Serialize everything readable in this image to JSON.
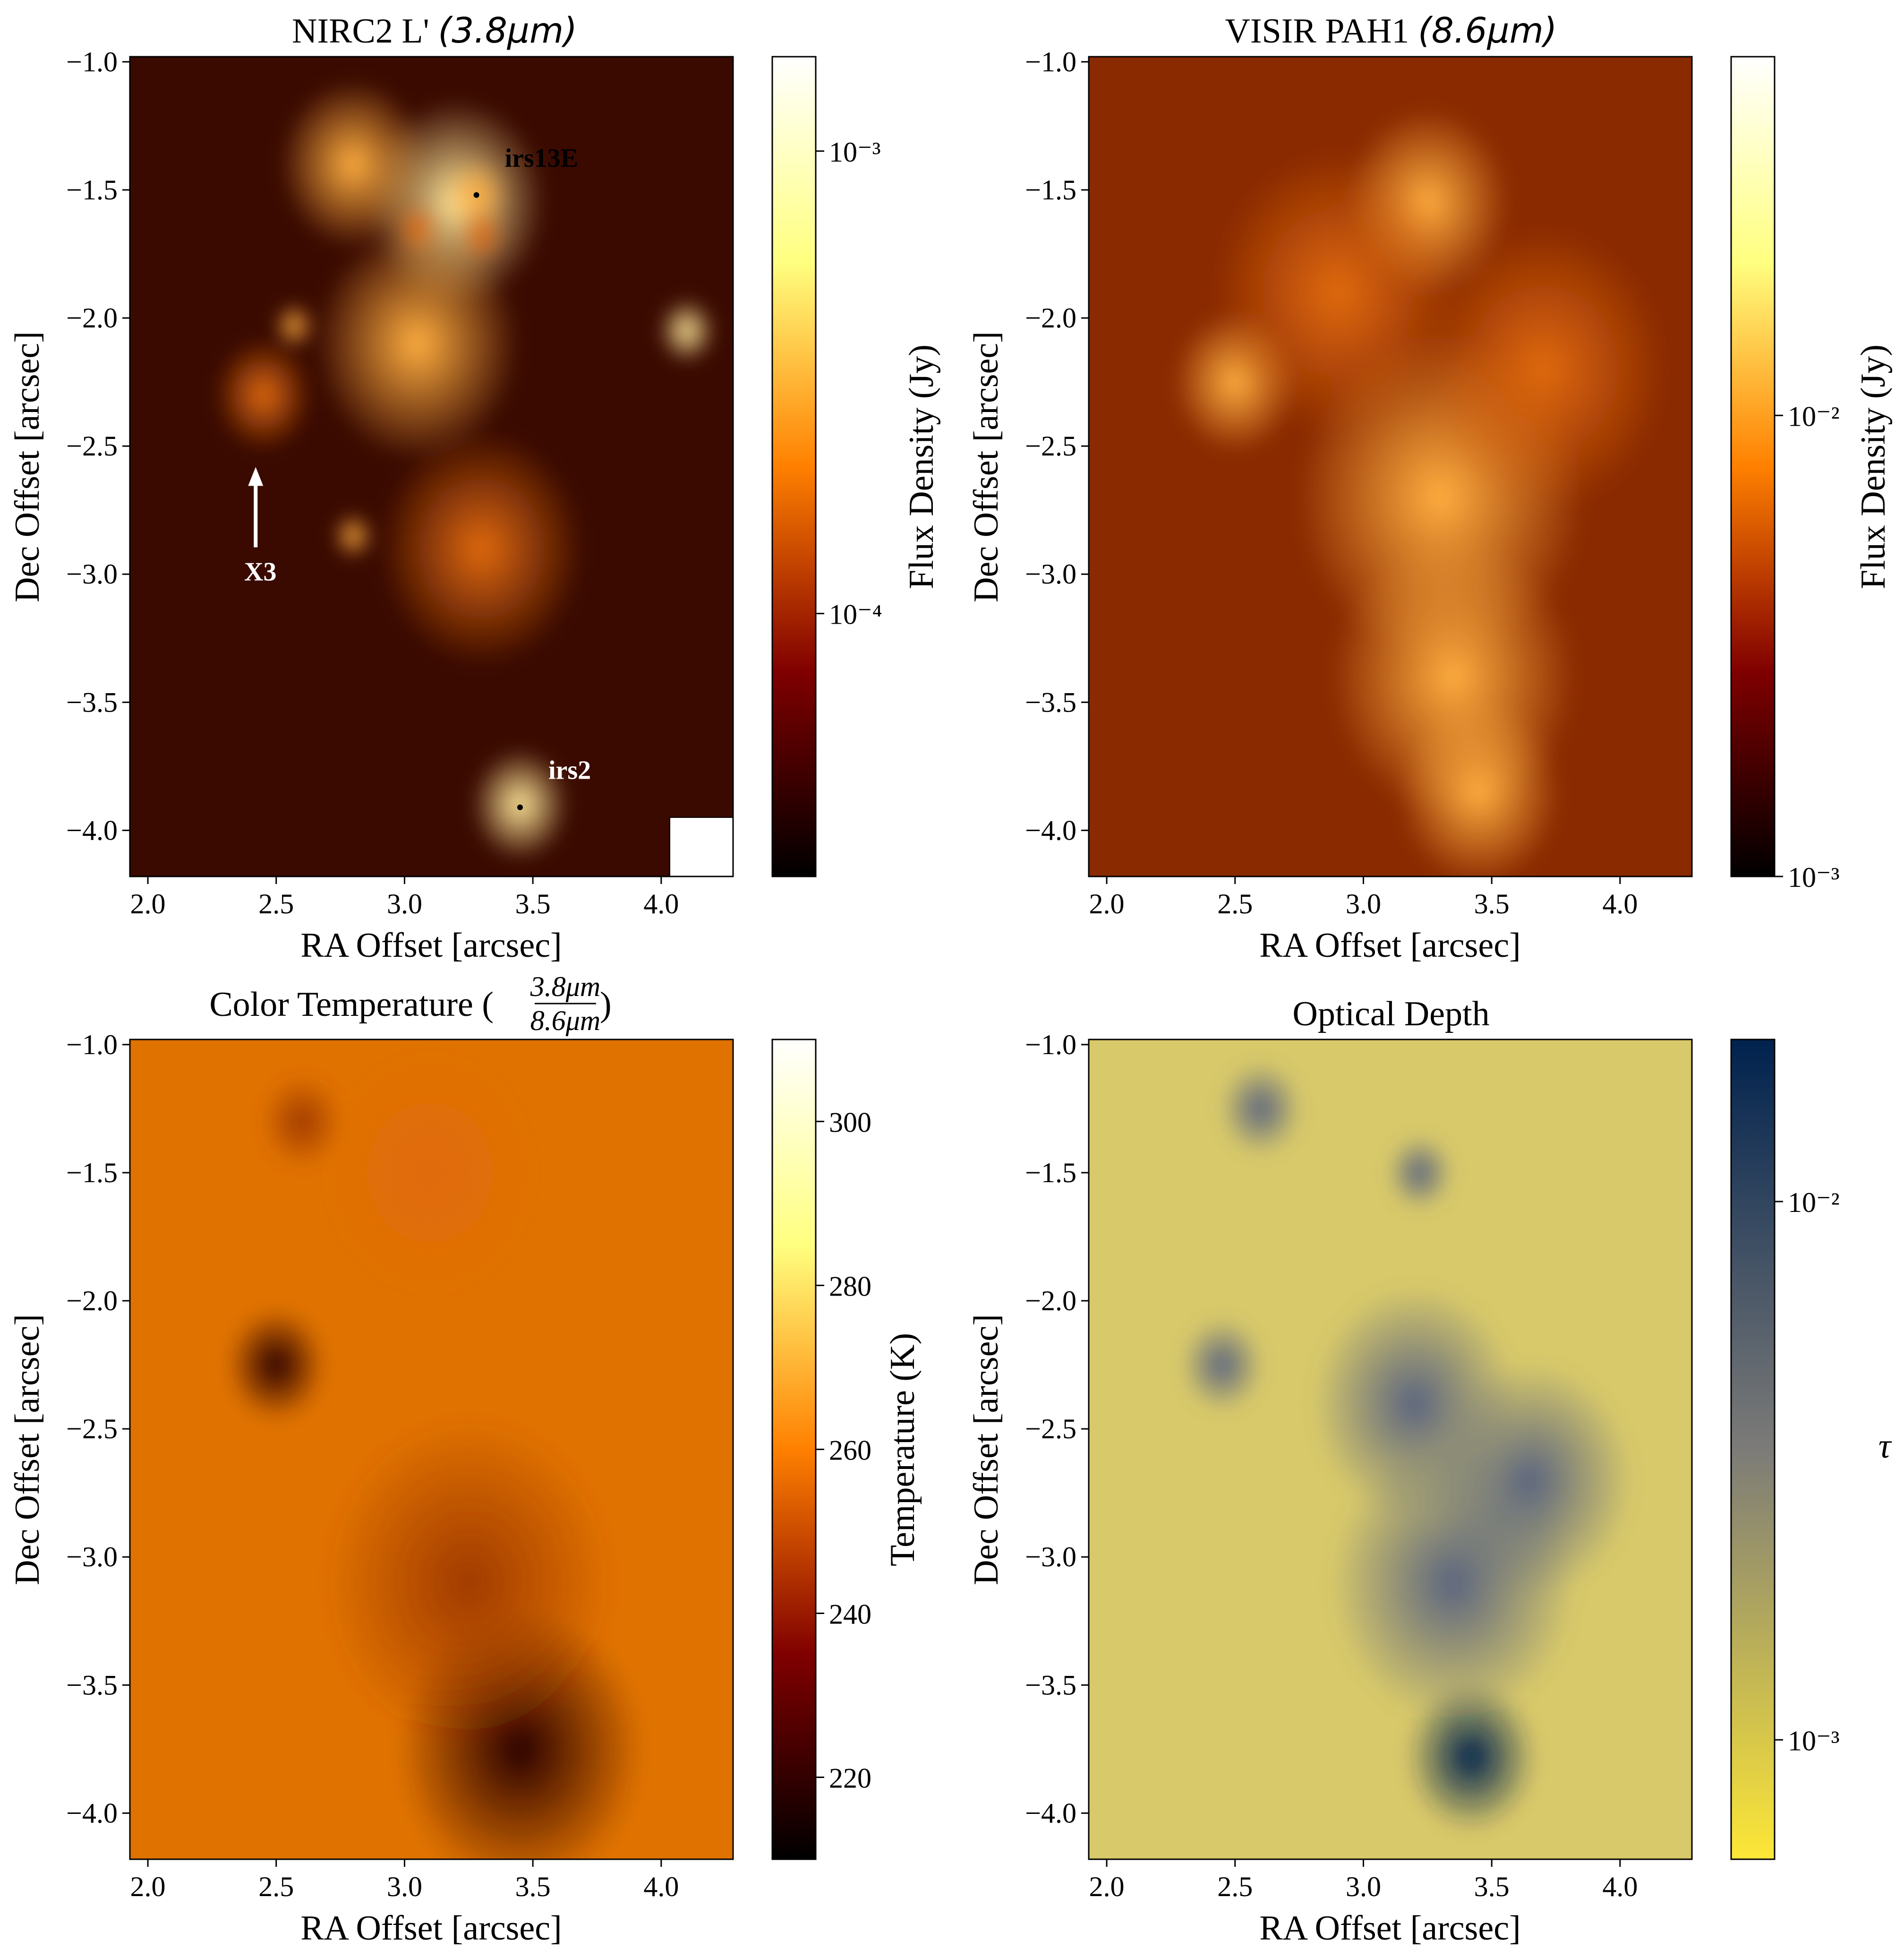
{
  "figure": {
    "panels": [
      {
        "id": "nirc2",
        "title_main": "NIRC2 L' ",
        "title_suffix": "(3.8μm)",
        "xlabel": "RA Offset [arcsec]",
        "ylabel": "Dec Offset [arcsec]",
        "colorbar_label": "Flux Density (Jy)"
      },
      {
        "id": "visir",
        "title_main": "VISIR PAH1 ",
        "title_suffix": "(8.6μm)",
        "xlabel": "RA Offset [arcsec]",
        "ylabel": "Dec Offset [arcsec]",
        "colorbar_label": "Flux Density (Jy)"
      },
      {
        "id": "colortemp",
        "title_main": "Color Temperature (",
        "title_num": "3.8μm",
        "title_den": "8.6μm",
        "title_close": ")",
        "xlabel": "RA Offset [arcsec]",
        "ylabel": "Dec Offset [arcsec]",
        "colorbar_label": "Temperature (K)"
      },
      {
        "id": "opticaldepth",
        "title_main": "Optical Depth",
        "xlabel": "RA Offset [arcsec]",
        "ylabel": "Dec Offset [arcsec]",
        "colorbar_label": "τ"
      }
    ],
    "xticks": [
      "2.0",
      "2.5",
      "3.0",
      "3.5",
      "4.0"
    ],
    "yticks": [
      "−1.0",
      "−1.5",
      "−2.0",
      "−2.5",
      "−3.0",
      "−3.5",
      "−4.0"
    ],
    "annotations": [
      {
        "label": "irs13E",
        "x": 3.28,
        "y": -1.52,
        "color": "#000000"
      },
      {
        "label": "irs2",
        "x": 3.45,
        "y": -3.91,
        "color": "#ffffff"
      },
      {
        "label": "X3",
        "x": 2.42,
        "y": -2.6,
        "color": "#ffffff"
      }
    ],
    "colors": {
      "afmhot_low": "#000000",
      "afmhot_mid": "#ff8000",
      "afmhot_high": "#ffffff",
      "cividis_low": "#fde737",
      "cividis_mid": "#7c7b78",
      "cividis_high": "#00224e"
    }
  },
  "chart_data": [
    {
      "type": "heatmap",
      "title": "NIRC2 L' (3.8μm)",
      "xlabel": "RA Offset [arcsec]",
      "ylabel": "Dec Offset [arcsec]",
      "xlim": [
        1.93,
        4.28
      ],
      "ylim": [
        -4.18,
        -0.98
      ],
      "colormap": "afmhot",
      "colorbar": {
        "label": "Flux Density (Jy)",
        "scale": "log",
        "range": [
          2.7e-05,
          0.0016
        ],
        "ticks": [
          {
            "value": 0.0001,
            "label": "10⁻⁴"
          },
          {
            "value": 0.001,
            "label": "10⁻³"
          }
        ]
      },
      "sources": [
        {
          "x": 3.2,
          "y": -1.55,
          "sigma": 0.22,
          "amp": 0.62
        },
        {
          "x": 3.28,
          "y": -1.52,
          "sigma": 0.08,
          "amp": 0.38
        },
        {
          "x": 3.3,
          "y": -1.68,
          "sigma": 0.06,
          "amp": 0.3
        },
        {
          "x": 3.05,
          "y": -1.65,
          "sigma": 0.06,
          "amp": 0.3
        },
        {
          "x": 2.8,
          "y": -1.4,
          "sigma": 0.18,
          "amp": 0.32
        },
        {
          "x": 3.05,
          "y": -2.1,
          "sigma": 0.25,
          "amp": 0.35
        },
        {
          "x": 3.3,
          "y": -2.9,
          "sigma": 0.25,
          "amp": 0.25
        },
        {
          "x": 3.45,
          "y": -3.9,
          "sigma": 0.12,
          "amp": 0.78
        },
        {
          "x": 4.1,
          "y": -2.05,
          "sigma": 0.07,
          "amp": 0.62
        },
        {
          "x": 2.57,
          "y": -2.03,
          "sigma": 0.05,
          "amp": 0.38
        },
        {
          "x": 2.8,
          "y": -2.85,
          "sigma": 0.05,
          "amp": 0.38
        },
        {
          "x": 2.45,
          "y": -2.3,
          "sigma": 0.12,
          "amp": 0.28
        }
      ]
    },
    {
      "type": "heatmap",
      "title": "VISIR PAH1 (8.6μm)",
      "xlabel": "RA Offset [arcsec]",
      "ylabel": "Dec Offset [arcsec]",
      "xlim": [
        1.93,
        4.28
      ],
      "ylim": [
        -4.18,
        -0.98
      ],
      "colormap": "afmhot",
      "colorbar": {
        "label": "Flux Density (Jy)",
        "scale": "log",
        "range": [
          0.001,
          0.06
        ],
        "ticks": [
          {
            "value": 0.001,
            "label": "10⁻³"
          },
          {
            "value": 0.01,
            "label": "10⁻²"
          }
        ]
      },
      "sources": [
        {
          "x": 3.25,
          "y": -1.55,
          "sigma": 0.2,
          "amp": 0.45
        },
        {
          "x": 3.45,
          "y": -3.85,
          "sigma": 0.2,
          "amp": 0.55
        },
        {
          "x": 3.3,
          "y": -2.7,
          "sigma": 0.35,
          "amp": 0.35
        },
        {
          "x": 3.35,
          "y": -3.4,
          "sigma": 0.3,
          "amp": 0.35
        },
        {
          "x": 2.5,
          "y": -2.25,
          "sigma": 0.15,
          "amp": 0.35
        },
        {
          "x": 2.9,
          "y": -1.9,
          "sigma": 0.3,
          "amp": 0.3
        },
        {
          "x": 3.7,
          "y": -2.2,
          "sigma": 0.3,
          "amp": 0.25
        }
      ]
    },
    {
      "type": "heatmap",
      "title": "Color Temperature (3.8μm / 8.6μm)",
      "xlabel": "RA Offset [arcsec]",
      "ylabel": "Dec Offset [arcsec]",
      "xlim": [
        1.93,
        4.28
      ],
      "ylim": [
        -4.18,
        -0.98
      ],
      "colormap": "afmhot",
      "colorbar": {
        "label": "Temperature (K)",
        "scale": "linear",
        "range": [
          210,
          310
        ],
        "ticks": [
          {
            "value": 220,
            "label": "220"
          },
          {
            "value": 240,
            "label": "240"
          },
          {
            "value": 260,
            "label": "260"
          },
          {
            "value": 280,
            "label": "280"
          },
          {
            "value": 300,
            "label": "300"
          }
        ]
      },
      "sources": [
        {
          "x": 3.45,
          "y": -3.75,
          "sigma": 0.3,
          "amp": -0.3
        },
        {
          "x": 2.5,
          "y": -2.25,
          "sigma": 0.12,
          "amp": -0.22
        },
        {
          "x": 3.1,
          "y": -1.5,
          "sigma": 0.25,
          "amp": 0.05
        },
        {
          "x": 3.25,
          "y": -3.1,
          "sigma": 0.35,
          "amp": -0.12
        },
        {
          "x": 2.6,
          "y": -1.3,
          "sigma": 0.1,
          "amp": -0.08
        }
      ]
    },
    {
      "type": "heatmap",
      "title": "Optical Depth",
      "xlabel": "RA Offset [arcsec]",
      "ylabel": "Dec Offset [arcsec]",
      "xlim": [
        1.93,
        4.28
      ],
      "ylim": [
        -4.18,
        -0.98
      ],
      "colormap": "cividis_r",
      "colorbar": {
        "label": "τ",
        "scale": "log",
        "range": [
          0.0006,
          0.02
        ],
        "ticks": [
          {
            "value": 0.001,
            "label": "10⁻³"
          },
          {
            "value": 0.01,
            "label": "10⁻²"
          }
        ]
      },
      "sources": [
        {
          "x": 3.42,
          "y": -3.78,
          "sigma": 0.16,
          "amp": 0.55
        },
        {
          "x": 3.35,
          "y": -3.1,
          "sigma": 0.3,
          "amp": 0.35
        },
        {
          "x": 3.2,
          "y": -2.4,
          "sigma": 0.25,
          "amp": 0.28
        },
        {
          "x": 3.22,
          "y": -1.5,
          "sigma": 0.08,
          "amp": 0.3
        },
        {
          "x": 2.45,
          "y": -2.25,
          "sigma": 0.1,
          "amp": 0.3
        },
        {
          "x": 2.6,
          "y": -1.25,
          "sigma": 0.1,
          "amp": 0.18
        },
        {
          "x": 3.65,
          "y": -2.7,
          "sigma": 0.25,
          "amp": 0.18
        }
      ]
    }
  ]
}
